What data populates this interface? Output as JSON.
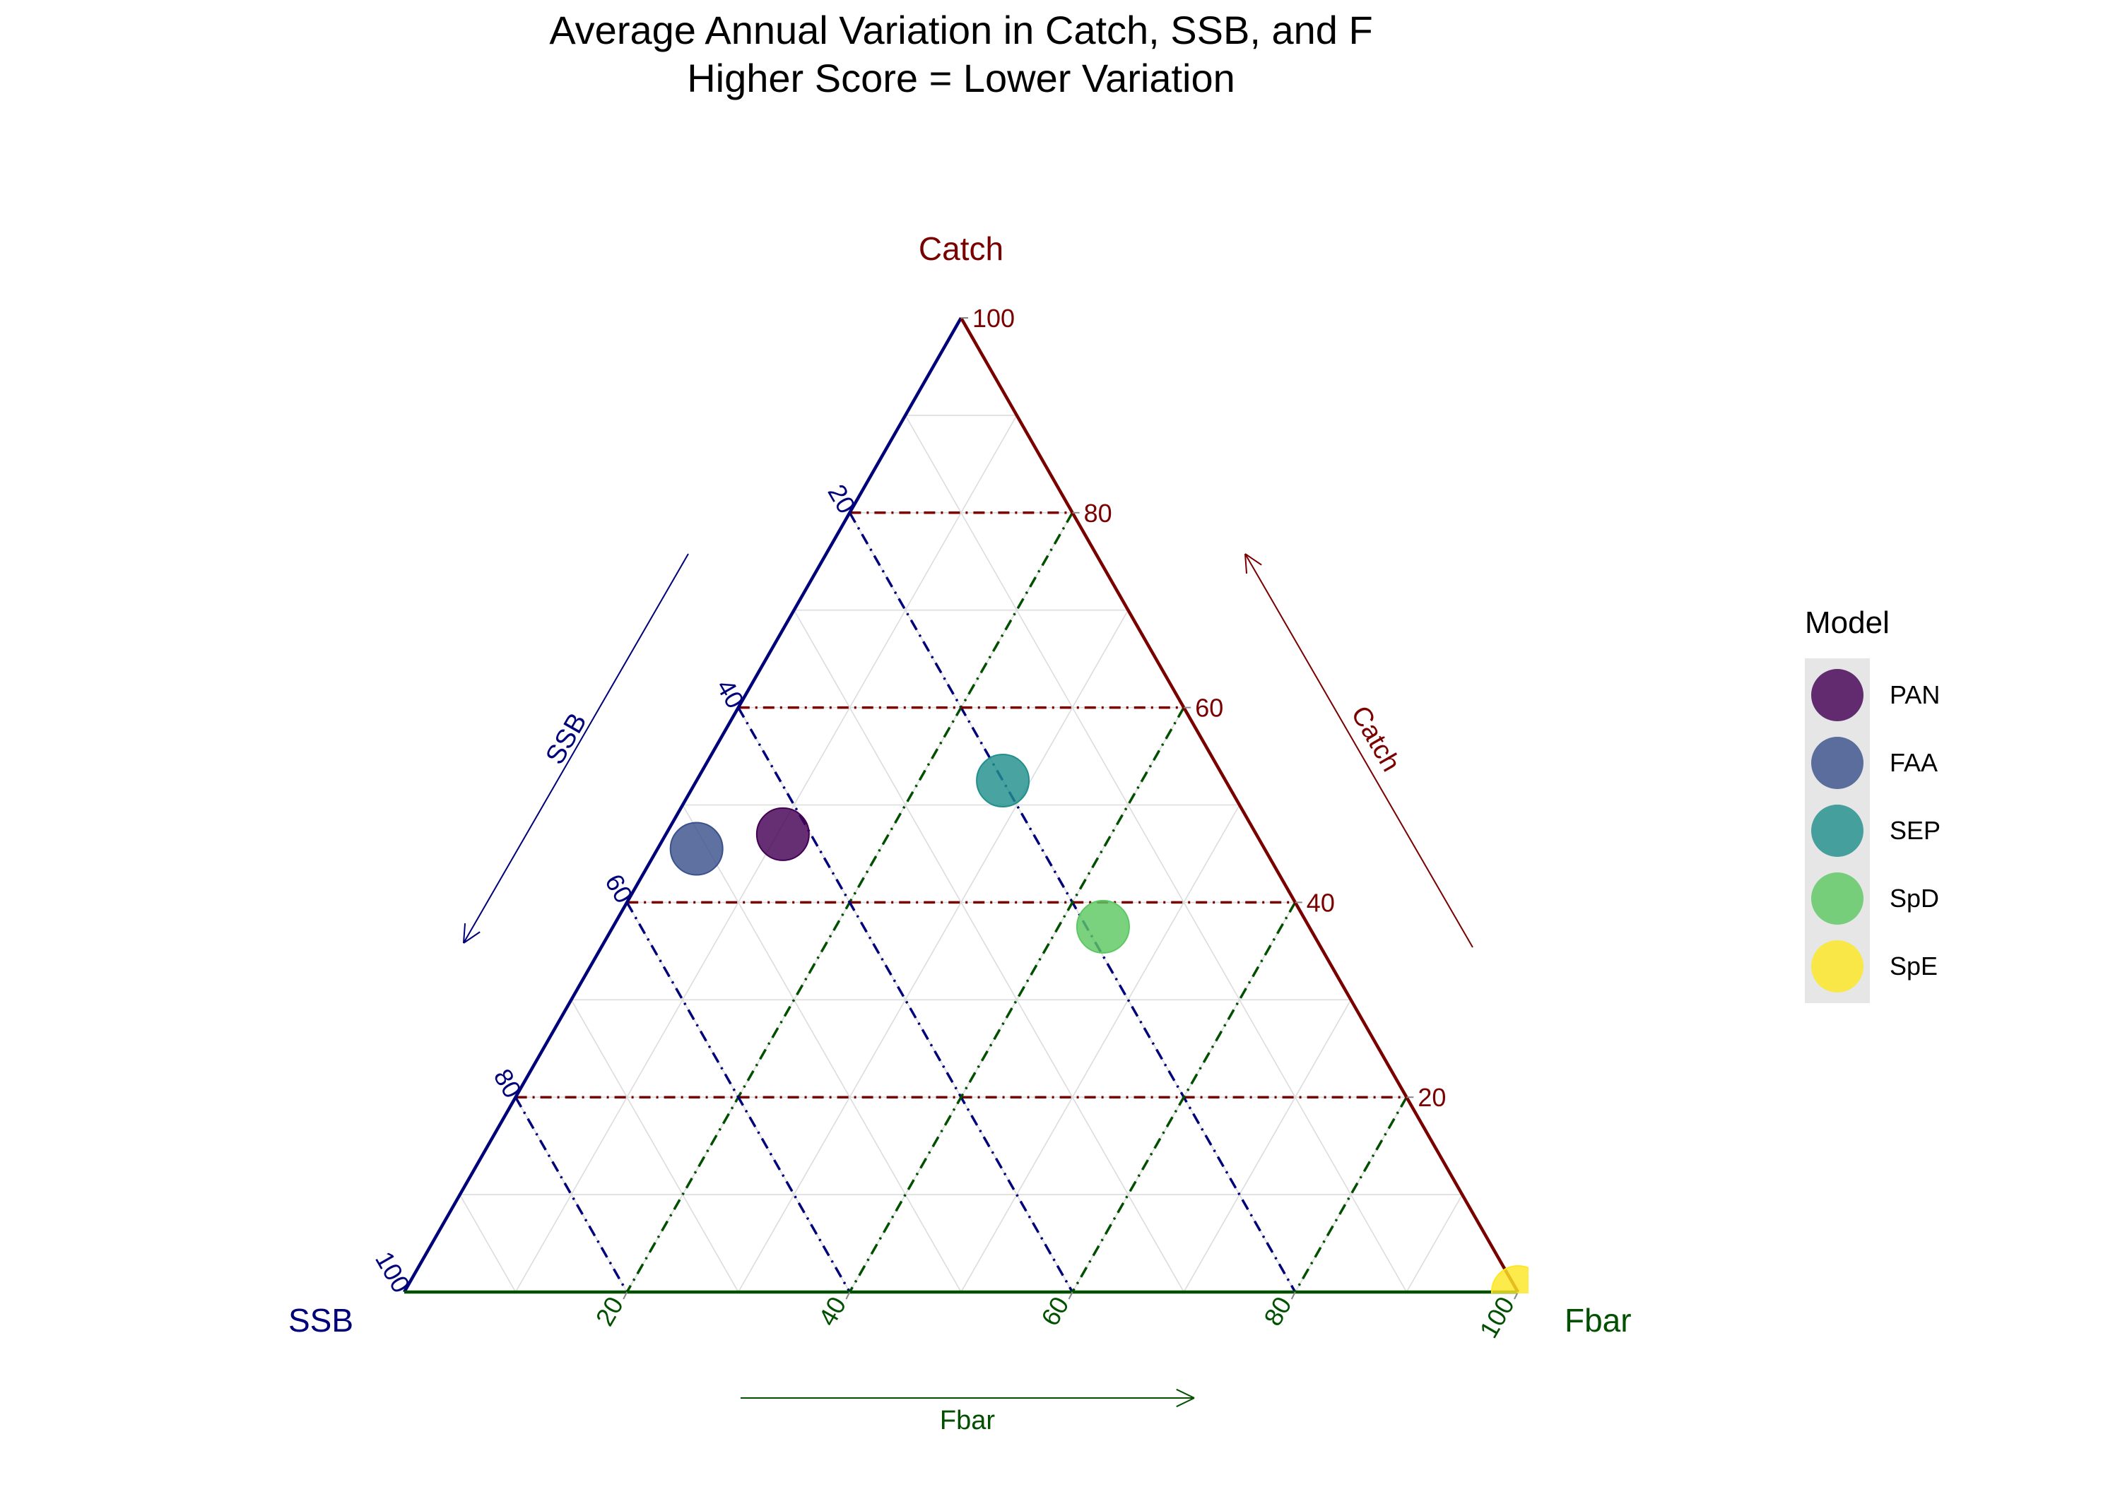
{
  "chart_data": {
    "type": "scatter",
    "subtype": "ternary",
    "title": "Average Annual Variation in Catch, SSB, and F",
    "subtitle": "Higher Score = Lower Variation",
    "axes": {
      "top": {
        "label": "Catch",
        "arrow_label": "Catch",
        "color": "#7a0000"
      },
      "left": {
        "label": "SSB",
        "arrow_label": "SSB",
        "color": "#00007a"
      },
      "right": {
        "label": "Fbar",
        "arrow_label": "Fbar",
        "color": "#005000"
      }
    },
    "ticks": {
      "catch": [
        "20",
        "40",
        "60",
        "80",
        "100"
      ],
      "ssb": [
        "20",
        "40",
        "60",
        "80",
        "100"
      ],
      "fbar": [
        "20",
        "40",
        "60",
        "80",
        "100"
      ]
    },
    "range": [
      0,
      100
    ],
    "major_gridlines": [
      20,
      40,
      60,
      80
    ],
    "minor_gridlines": [
      10,
      30,
      50,
      70,
      90
    ],
    "legend": {
      "title": "Model",
      "position": "right",
      "items": [
        {
          "name": "PAN",
          "color": "#440154"
        },
        {
          "name": "FAA",
          "color": "#3b528b"
        },
        {
          "name": "SEP",
          "color": "#21908c"
        },
        {
          "name": "SpD",
          "color": "#5dc863"
        },
        {
          "name": "SpE",
          "color": "#fde725"
        }
      ]
    },
    "points": [
      {
        "model": "PAN",
        "catch": 47,
        "ssb": 42.5,
        "fbar": 10.5
      },
      {
        "model": "FAA",
        "catch": 45.5,
        "ssb": 51,
        "fbar": 3.5
      },
      {
        "model": "SEP",
        "catch": 52.5,
        "ssb": 20,
        "fbar": 27.5
      },
      {
        "model": "SpD",
        "catch": 37.5,
        "ssb": 18.5,
        "fbar": 44
      },
      {
        "model": "SpE",
        "catch": 0,
        "ssb": 0,
        "fbar": 100
      }
    ]
  }
}
